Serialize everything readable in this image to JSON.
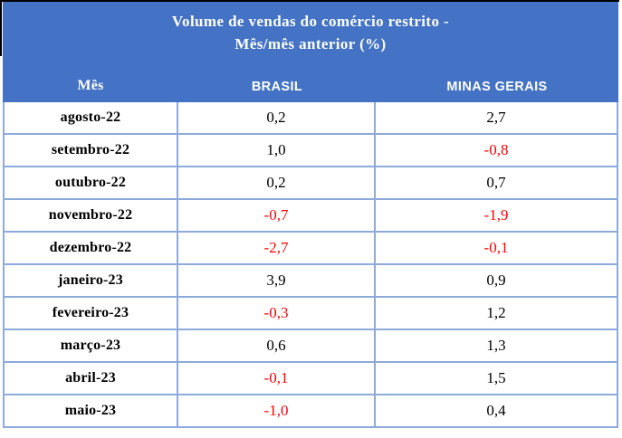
{
  "table": {
    "title_line1": "Volume de vendas do comércio restrito -",
    "title_line2": "Mês/mês anterior (%)",
    "columns": [
      "Mês",
      "BRASIL",
      "MINAS GERAIS"
    ],
    "rows": [
      {
        "month": "agosto-22",
        "brasil": "0,2",
        "minas_gerais": "2,7"
      },
      {
        "month": "setembro-22",
        "brasil": "1,0",
        "minas_gerais": "-0,8"
      },
      {
        "month": "outubro-22",
        "brasil": "0,2",
        "minas_gerais": "0,7"
      },
      {
        "month": "novembro-22",
        "brasil": "-0,7",
        "minas_gerais": "-1,9"
      },
      {
        "month": "dezembro-22",
        "brasil": "-2,7",
        "minas_gerais": "-0,1"
      },
      {
        "month": "janeiro-23",
        "brasil": "3,9",
        "minas_gerais": "0,9"
      },
      {
        "month": "fevereiro-23",
        "brasil": "-0,3",
        "minas_gerais": "1,2"
      },
      {
        "month": "março-23",
        "brasil": "0,6",
        "minas_gerais": "1,3"
      },
      {
        "month": "abril-23",
        "brasil": "-0,1",
        "minas_gerais": "1,5"
      },
      {
        "month": "maio-23",
        "brasil": "-1,0",
        "minas_gerais": "0,4"
      }
    ]
  },
  "colors": {
    "header_blue": "#4472C4",
    "border_blue": "#8EAADB",
    "negative_red": "#FF0000",
    "header_text": "#FFFFFF",
    "body_text": "#000000"
  },
  "chart_data": {
    "type": "table",
    "title": "Volume de vendas do comércio restrito - Mês/mês anterior (%)",
    "columns": [
      "Mês",
      "BRASIL",
      "MINAS GERAIS"
    ],
    "categories": [
      "agosto-22",
      "setembro-22",
      "outubro-22",
      "novembro-22",
      "dezembro-22",
      "janeiro-23",
      "fevereiro-23",
      "março-23",
      "abril-23",
      "maio-23"
    ],
    "series": [
      {
        "name": "BRASIL",
        "values": [
          0.2,
          1.0,
          0.2,
          -0.7,
          -2.7,
          3.9,
          -0.3,
          0.6,
          -0.1,
          -1.0
        ]
      },
      {
        "name": "MINAS GERAIS",
        "values": [
          2.7,
          -0.8,
          0.7,
          -1.9,
          -0.1,
          0.9,
          1.2,
          1.3,
          1.5,
          0.4
        ]
      }
    ],
    "value_format": "one decimal, comma as decimal separator",
    "negative_values_colored_red": true
  }
}
